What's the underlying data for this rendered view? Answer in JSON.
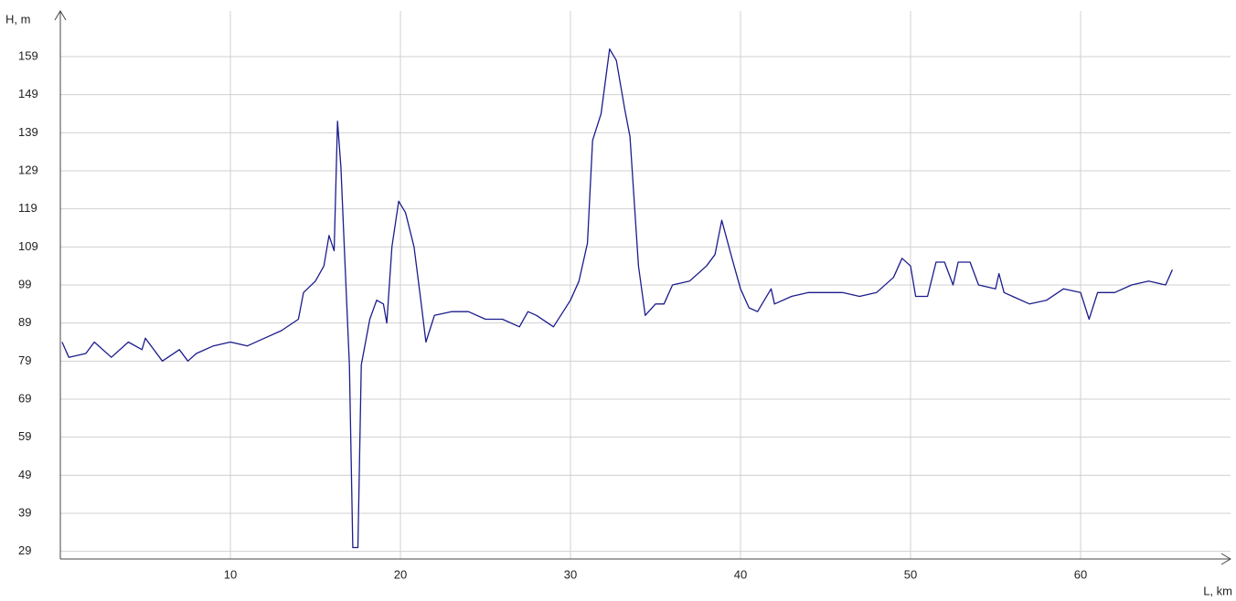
{
  "chart_data": {
    "type": "line",
    "y_label": "H, m",
    "x_label": "L, km",
    "xlim": [
      0,
      69
    ],
    "ylim": [
      27,
      171
    ],
    "xticks": [
      10,
      20,
      30,
      40,
      50,
      60
    ],
    "yticks": [
      29,
      39,
      49,
      59,
      69,
      79,
      89,
      99,
      109,
      119,
      129,
      139,
      149,
      159
    ],
    "grid": true,
    "series": [
      {
        "name": null,
        "color": "#1c1c8c",
        "x": [
          0.1,
          0.5,
          1.5,
          2,
          3,
          4,
          4.8,
          5,
          6,
          7,
          7.5,
          8,
          9,
          10,
          11,
          12,
          13,
          14,
          14.3,
          15,
          15.5,
          15.8,
          16.1,
          16.3,
          16.5,
          16.7,
          17,
          17.2,
          17.5,
          17.7,
          18.2,
          18.6,
          19,
          19.2,
          19.5,
          19.9,
          20.3,
          20.8,
          21.2,
          21.5,
          22,
          23,
          24,
          25,
          26,
          27,
          27.5,
          28,
          29,
          30,
          30.5,
          31,
          31.3,
          31.8,
          32.3,
          32.7,
          33.2,
          33.5,
          34,
          34.4,
          35,
          35.5,
          36,
          37,
          38,
          38.5,
          38.9,
          39.5,
          40,
          40.5,
          41,
          41.8,
          42,
          43,
          44,
          45,
          46,
          47,
          48,
          49,
          49.5,
          50,
          50.3,
          51,
          51.5,
          52,
          52.5,
          52.8,
          53.5,
          54,
          55,
          55.2,
          55.5,
          56,
          57,
          58,
          59,
          60,
          60.5,
          61,
          62,
          63,
          64,
          65,
          65.4
        ],
        "values": [
          84,
          80,
          81,
          84,
          80,
          84,
          82,
          85,
          79,
          82,
          79,
          81,
          83,
          84,
          83,
          85,
          87,
          90,
          97,
          100,
          104,
          112,
          108,
          142,
          130,
          109,
          78,
          30,
          30,
          78,
          90,
          95,
          94,
          89,
          109,
          121,
          118,
          109,
          95,
          84,
          91,
          92,
          92,
          90,
          90,
          88,
          92,
          91,
          88,
          95,
          100,
          110,
          137,
          144,
          161,
          158,
          145,
          138,
          104,
          91,
          94,
          94,
          99,
          100,
          104,
          107,
          116,
          106,
          98,
          93,
          92,
          98,
          94,
          96,
          97,
          97,
          97,
          96,
          97,
          101,
          106,
          104,
          96,
          96,
          105,
          105,
          99,
          105,
          105,
          99,
          98,
          102,
          97,
          96,
          94,
          95,
          98,
          97,
          90,
          97,
          97,
          99,
          100,
          99,
          103
        ]
      }
    ]
  }
}
